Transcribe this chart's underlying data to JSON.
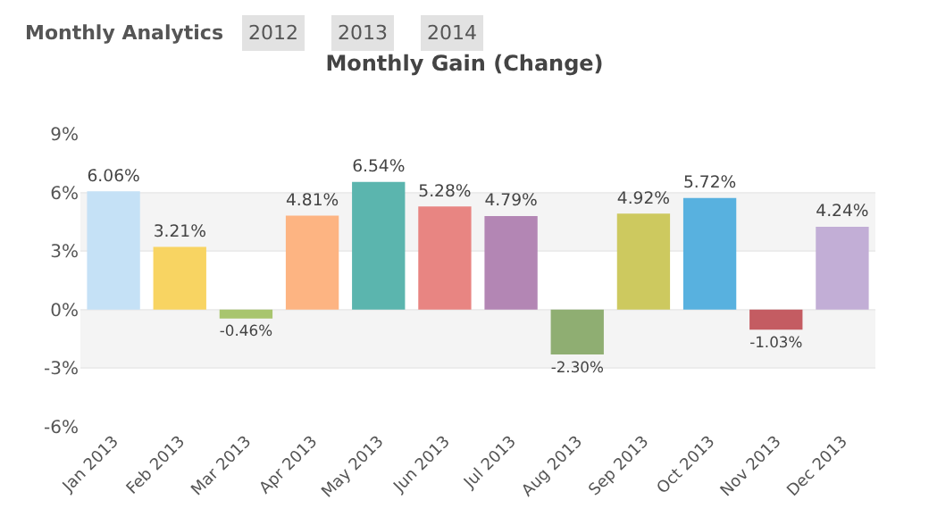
{
  "chart_data": {
    "type": "bar",
    "title": "Monthly Gain (Change)",
    "annotations": [
      "Monthly Analytics",
      "2012",
      "2013",
      "2014"
    ],
    "categories": [
      "Jan 2013",
      "Feb 2013",
      "Mar 2013",
      "Apr 2013",
      "May 2013",
      "Jun 2013",
      "Jul 2013",
      "Aug 2013",
      "Sep 2013",
      "Oct 2013",
      "Nov 2013",
      "Dec 2013"
    ],
    "values": [
      6.06,
      3.21,
      -0.46,
      4.81,
      6.54,
      5.28,
      4.79,
      -2.3,
      4.92,
      5.72,
      -1.03,
      4.24
    ],
    "value_labels": [
      "6.06%",
      "3.21%",
      "-0.46%",
      "4.81%",
      "6.54%",
      "5.28%",
      "4.79%",
      "-2.30%",
      "4.92%",
      "5.72%",
      "-1.03%",
      "4.24%"
    ],
    "colors": [
      "#c5e1f6",
      "#f8d462",
      "#a8c56e",
      "#fdb482",
      "#5bb5ae",
      "#e88582",
      "#b386b4",
      "#8fae72",
      "#cdc95f",
      "#58b1df",
      "#c45c62",
      "#c2aed6"
    ],
    "ylim": [
      -6,
      9
    ],
    "yticks": [
      {
        "value": -6,
        "label": "-6%"
      },
      {
        "value": -3,
        "label": "-3%"
      },
      {
        "value": 0,
        "label": "0%"
      },
      {
        "value": 3,
        "label": "3%"
      },
      {
        "value": 6,
        "label": "6%"
      },
      {
        "value": 9,
        "label": "9%"
      }
    ],
    "bands": [
      {
        "axis": "y",
        "from": 3,
        "to": 6,
        "color": "#f4f4f4"
      },
      {
        "axis": "y",
        "from": -3,
        "to": 0,
        "color": "#f4f4f4"
      }
    ],
    "grid": "y"
  }
}
